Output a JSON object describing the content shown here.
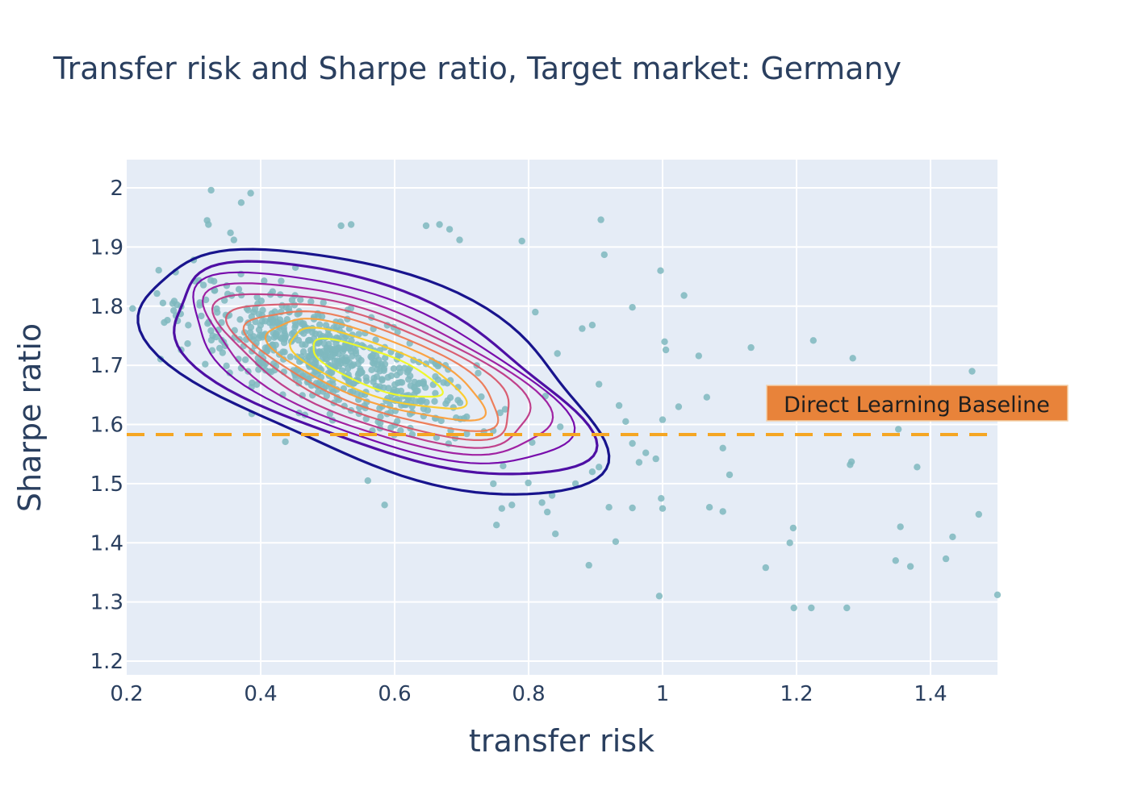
{
  "chart_data": {
    "type": "scatter",
    "title": "Transfer risk and Sharpe ratio, Target market: Germany",
    "xlabel": "transfer risk",
    "ylabel": "Sharpe ratio",
    "xlim": [
      0.2,
      1.5
    ],
    "ylim": [
      1.18,
      2.04
    ],
    "xticks": [
      {
        "value": 0.2,
        "label": "0.2"
      },
      {
        "value": 0.4,
        "label": "0.4"
      },
      {
        "value": 0.6,
        "label": "0.6"
      },
      {
        "value": 0.8,
        "label": "0.8"
      },
      {
        "value": 1.0,
        "label": "1"
      },
      {
        "value": 1.2,
        "label": "1.2"
      },
      {
        "value": 1.4,
        "label": "1.4"
      }
    ],
    "yticks": [
      {
        "value": 1.2,
        "label": "1.2"
      },
      {
        "value": 1.3,
        "label": "1.3"
      },
      {
        "value": 1.4,
        "label": "1.4"
      },
      {
        "value": 1.5,
        "label": "1.5"
      },
      {
        "value": 1.6,
        "label": "1.6"
      },
      {
        "value": 1.7,
        "label": "1.7"
      },
      {
        "value": 1.8,
        "label": "1.8"
      },
      {
        "value": 1.9,
        "label": "1.9"
      },
      {
        "value": 2.0,
        "label": "2"
      }
    ],
    "grid": true,
    "colors": {
      "plot_bg": "#e5ecf6",
      "grid": "#ffffff",
      "points": "#7fb8be",
      "baseline": "#f5a623",
      "annotation_bg": "#e8833a",
      "annotation_border": "#f4d0a8",
      "contour": [
        "#0d0887",
        "#46039f",
        "#7201a8",
        "#9c179e",
        "#bd3786",
        "#d8576b",
        "#ed7953",
        "#fb9f3a",
        "#fdca26",
        "#f0f921"
      ]
    },
    "baseline": {
      "y": 1.583,
      "label": "Direct Learning Baseline",
      "style": "dashed"
    },
    "outliers": [
      [
        0.326,
        1.996
      ],
      [
        0.385,
        1.991
      ],
      [
        0.371,
        1.975
      ],
      [
        0.32,
        1.945
      ],
      [
        0.322,
        1.938
      ],
      [
        0.355,
        1.924
      ],
      [
        0.36,
        1.912
      ],
      [
        0.3,
        1.878
      ],
      [
        0.52,
        1.936
      ],
      [
        0.535,
        1.938
      ],
      [
        0.647,
        1.936
      ],
      [
        0.667,
        1.938
      ],
      [
        0.682,
        1.93
      ],
      [
        0.697,
        1.912
      ],
      [
        0.79,
        1.91
      ],
      [
        0.908,
        1.946
      ],
      [
        0.913,
        1.887
      ],
      [
        0.81,
        1.79
      ],
      [
        0.955,
        1.798
      ],
      [
        0.997,
        1.86
      ],
      [
        1.032,
        1.818
      ],
      [
        0.895,
        1.768
      ],
      [
        0.88,
        1.762
      ],
      [
        0.843,
        1.72
      ],
      [
        1.003,
        1.74
      ],
      [
        1.005,
        1.726
      ],
      [
        1.054,
        1.716
      ],
      [
        0.905,
        1.668
      ],
      [
        0.825,
        1.648
      ],
      [
        0.935,
        1.632
      ],
      [
        0.945,
        1.605
      ],
      [
        1.0,
        1.608
      ],
      [
        1.024,
        1.63
      ],
      [
        1.066,
        1.646
      ],
      [
        1.132,
        1.73
      ],
      [
        1.225,
        1.742
      ],
      [
        1.284,
        1.712
      ],
      [
        1.462,
        1.69
      ],
      [
        1.352,
        1.592
      ],
      [
        0.955,
        1.568
      ],
      [
        0.975,
        1.552
      ],
      [
        0.99,
        1.542
      ],
      [
        0.965,
        1.536
      ],
      [
        1.09,
        1.56
      ],
      [
        1.1,
        1.515
      ],
      [
        0.905,
        1.528
      ],
      [
        0.895,
        1.52
      ],
      [
        0.87,
        1.5
      ],
      [
        0.835,
        1.48
      ],
      [
        0.828,
        1.452
      ],
      [
        0.82,
        1.468
      ],
      [
        0.775,
        1.464
      ],
      [
        0.752,
        1.43
      ],
      [
        0.76,
        1.458
      ],
      [
        0.585,
        1.464
      ],
      [
        0.56,
        1.505
      ],
      [
        0.92,
        1.46
      ],
      [
        0.998,
        1.475
      ],
      [
        1.0,
        1.458
      ],
      [
        0.955,
        1.459
      ],
      [
        1.07,
        1.46
      ],
      [
        1.09,
        1.453
      ],
      [
        0.84,
        1.415
      ],
      [
        0.93,
        1.402
      ],
      [
        0.89,
        1.362
      ],
      [
        0.995,
        1.31
      ],
      [
        1.154,
        1.358
      ],
      [
        1.19,
        1.4
      ],
      [
        1.195,
        1.425
      ],
      [
        1.196,
        1.29
      ],
      [
        1.222,
        1.29
      ],
      [
        1.275,
        1.29
      ],
      [
        1.28,
        1.532
      ],
      [
        1.282,
        1.537
      ],
      [
        1.38,
        1.528
      ],
      [
        1.355,
        1.427
      ],
      [
        1.348,
        1.37
      ],
      [
        1.37,
        1.36
      ],
      [
        1.423,
        1.373
      ],
      [
        1.433,
        1.41
      ],
      [
        1.472,
        1.448
      ],
      [
        1.5,
        1.312
      ]
    ],
    "cluster": {
      "center": [
        0.5,
        1.71
      ],
      "spread": [
        0.11,
        0.075
      ],
      "count": 620
    }
  }
}
